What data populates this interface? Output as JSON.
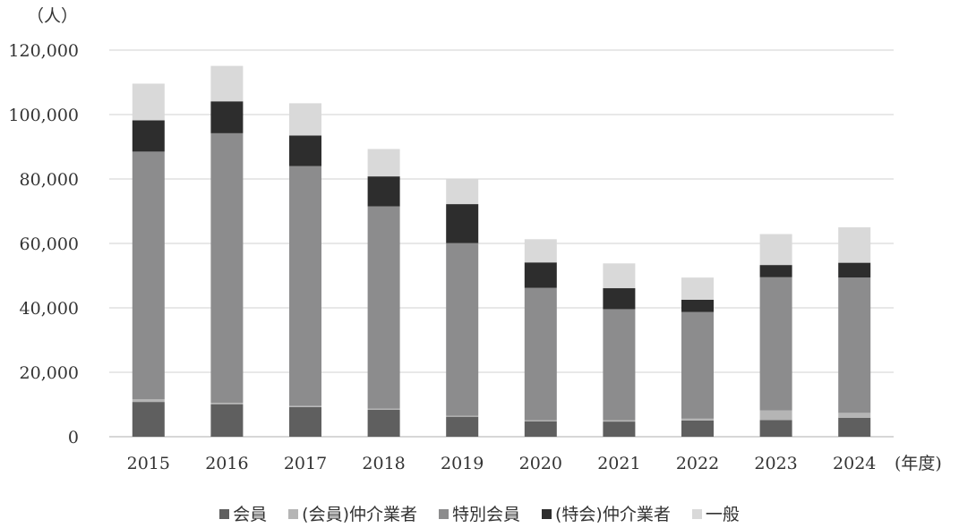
{
  "chart_data": {
    "type": "bar",
    "stacked": true,
    "y_unit_label": "（人）",
    "x_unit_label": "(年度)",
    "categories": [
      "2015",
      "2016",
      "2017",
      "2018",
      "2019",
      "2020",
      "2021",
      "2022",
      "2023",
      "2024"
    ],
    "ylim": [
      0,
      120000
    ],
    "yticks": [
      0,
      20000,
      40000,
      60000,
      80000,
      100000,
      120000
    ],
    "ytick_labels": [
      "0",
      "20,000",
      "40,000",
      "60,000",
      "80,000",
      "100,000",
      "120,000"
    ],
    "grid": true,
    "legend_position": "bottom",
    "series": [
      {
        "name": "会員",
        "color": "#5f5f5f",
        "values": [
          10800,
          10100,
          9200,
          8400,
          6200,
          4800,
          4700,
          5000,
          5200,
          5900
        ]
      },
      {
        "name": "(会員)仲介業者",
        "color": "#b5b5b5",
        "values": [
          800,
          400,
          400,
          300,
          300,
          300,
          400,
          600,
          3000,
          1500
        ]
      },
      {
        "name": "特別会員",
        "color": "#8c8c8d",
        "values": [
          76900,
          83700,
          74400,
          62800,
          53600,
          41100,
          34500,
          33100,
          41300,
          42000
        ]
      },
      {
        "name": "(特会)仲介業者",
        "color": "#2d2d2d",
        "values": [
          9700,
          9900,
          9500,
          9300,
          12100,
          7900,
          6500,
          3800,
          3800,
          4600
        ]
      },
      {
        "name": "一般",
        "color": "#d9d9d9",
        "values": [
          11400,
          11000,
          10000,
          8500,
          7700,
          7200,
          7700,
          6900,
          9600,
          11000
        ]
      }
    ]
  }
}
